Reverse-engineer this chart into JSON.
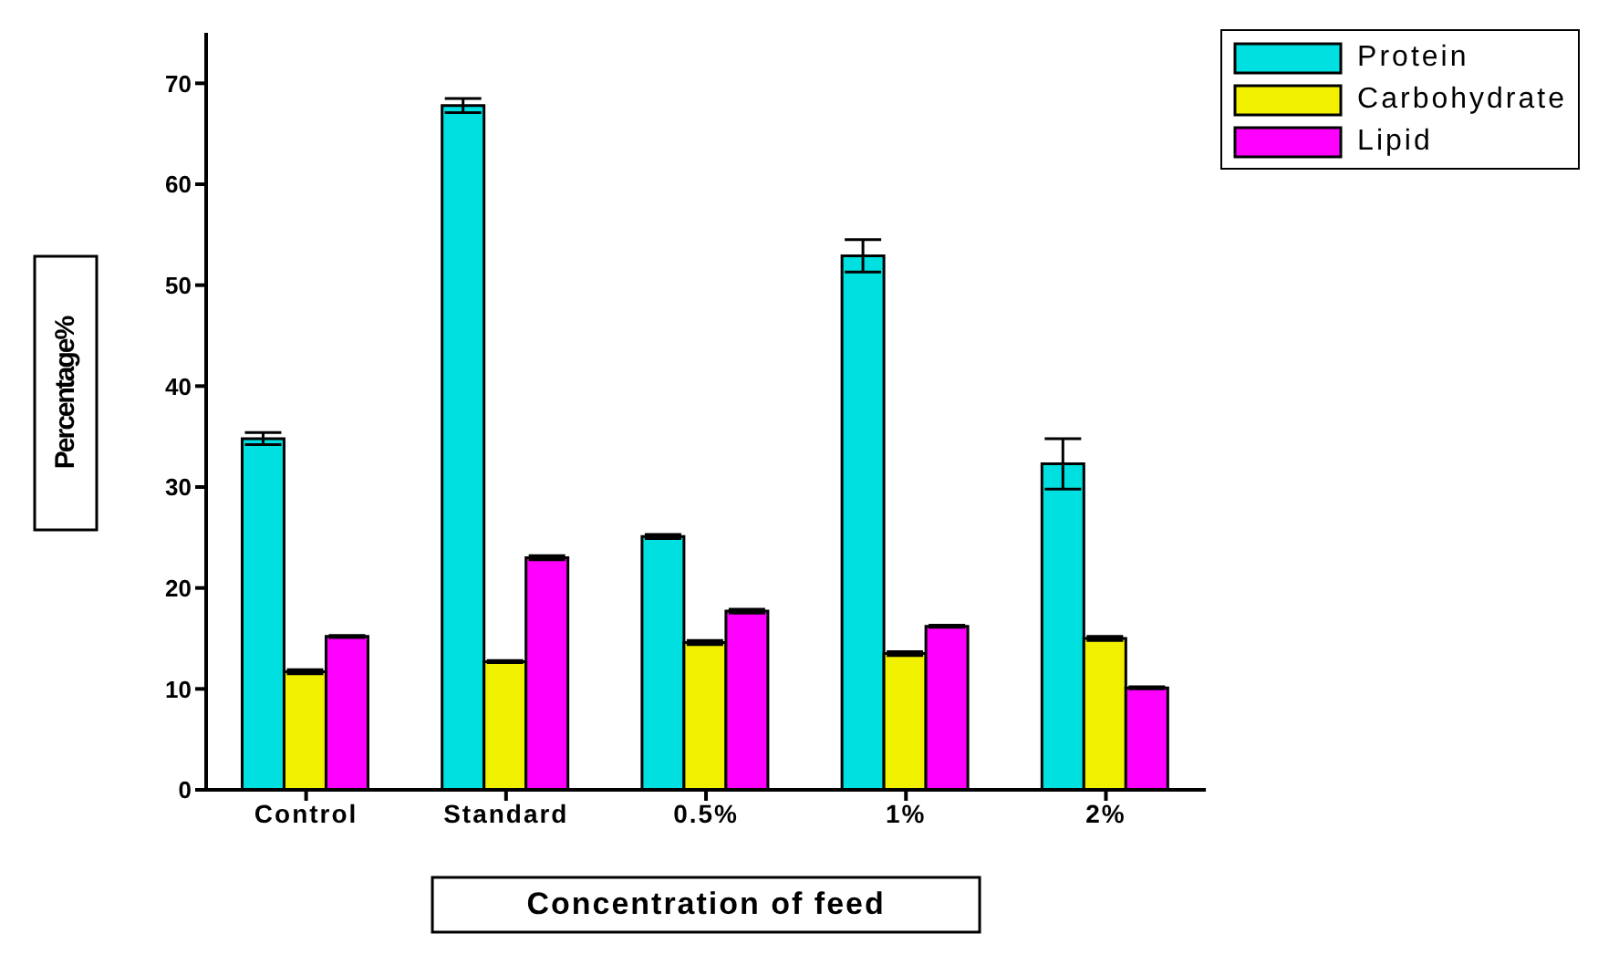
{
  "chart_data": {
    "type": "bar",
    "xlabel": "Concentration of feed",
    "ylabel": "Percentage%",
    "categories": [
      "Control",
      "Standard",
      "0.5%",
      "1%",
      "2%"
    ],
    "series": [
      {
        "name": "Protein",
        "color": "#00e0e0",
        "values": [
          34.8,
          67.8,
          25.1,
          52.9,
          32.3
        ],
        "errors": [
          0.6,
          0.7,
          0.2,
          1.6,
          2.5
        ]
      },
      {
        "name": "Carbohydrate",
        "color": "#f0f000",
        "values": [
          11.7,
          12.7,
          14.6,
          13.5,
          15.0
        ],
        "errors": [
          0.2,
          0.1,
          0.2,
          0.2,
          0.2
        ]
      },
      {
        "name": "Lipid",
        "color": "#ff00ff",
        "values": [
          15.2,
          23.0,
          17.7,
          16.2,
          10.1
        ],
        "errors": [
          0.1,
          0.2,
          0.2,
          0.1,
          0.1
        ]
      }
    ],
    "ylim": [
      0,
      75
    ],
    "yticks": [
      0,
      10,
      20,
      30,
      40,
      50,
      60,
      70
    ],
    "grid": false,
    "legend": "top right"
  }
}
